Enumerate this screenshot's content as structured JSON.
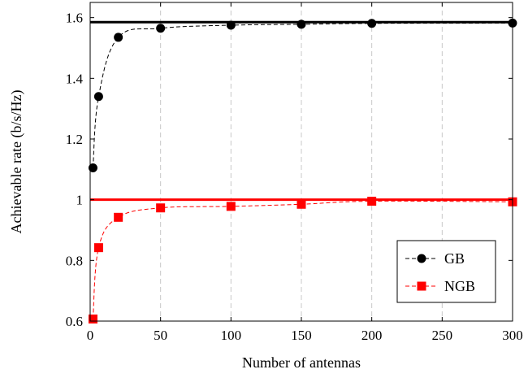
{
  "chart_data": {
    "type": "line",
    "xlabel": "Number of antennas",
    "ylabel": "Achievable rate (b/s/Hz)",
    "xlim": [
      0,
      300
    ],
    "ylim": [
      0.6,
      1.65
    ],
    "x_ticks": [
      0,
      50,
      100,
      150,
      200,
      250,
      300
    ],
    "x_tick_labels": [
      "0",
      "50",
      "100",
      "150",
      "200",
      "250",
      "300"
    ],
    "y_ticks": [
      0.6,
      0.8,
      1.0,
      1.2,
      1.4,
      1.6
    ],
    "y_tick_labels": [
      "0.6",
      "0.8",
      "1",
      "1.2",
      "1.4",
      "1.6"
    ],
    "grid": "vertical dashed",
    "legend_position": "bottom-right",
    "series": [
      {
        "name": "GB",
        "color": "#000000",
        "marker": "circle",
        "line_style": "dashed",
        "x": [
          2,
          6,
          20,
          50,
          100,
          150,
          200,
          300
        ],
        "y": [
          1.105,
          1.34,
          1.535,
          1.565,
          1.575,
          1.578,
          1.581,
          1.582
        ]
      },
      {
        "name": "NGB",
        "color": "#ff0000",
        "marker": "square",
        "line_style": "dashed",
        "x": [
          2,
          6,
          20,
          50,
          100,
          150,
          200,
          300
        ],
        "y": [
          0.607,
          0.842,
          0.942,
          0.973,
          0.978,
          0.985,
          0.995,
          0.993
        ]
      }
    ],
    "reference_lines": [
      {
        "y": 1.585,
        "color": "#000000"
      },
      {
        "y": 1.0,
        "color": "#ff0000"
      }
    ]
  }
}
